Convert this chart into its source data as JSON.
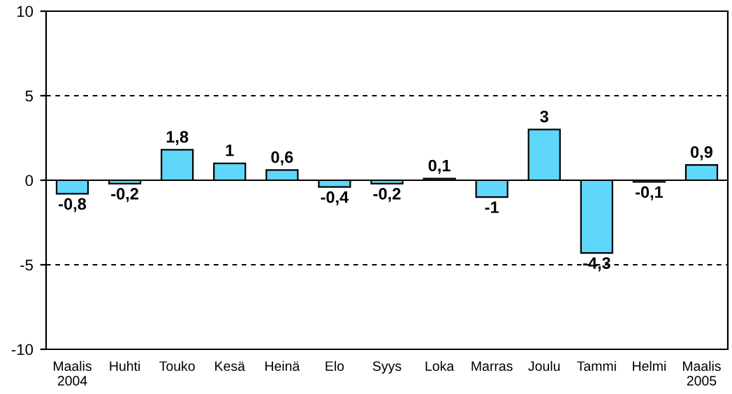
{
  "chart_data": {
    "type": "bar",
    "categories": [
      "Maalis\n2004",
      "Huhti",
      "Touko",
      "Kesä",
      "Heinä",
      "Elo",
      "Syys",
      "Loka",
      "Marras",
      "Joulu",
      "Tammi",
      "Helmi",
      "Maalis\n2005"
    ],
    "values": [
      -0.8,
      -0.2,
      1.8,
      1,
      0.6,
      -0.4,
      -0.2,
      0.1,
      -1,
      3,
      -4.3,
      -0.1,
      0.9
    ],
    "value_labels": [
      "-0,8",
      "-0,2",
      "1,8",
      "1",
      "0,6",
      "-0,4",
      "-0,2",
      "0,1",
      "-1",
      "3",
      "-4,3",
      "-0,1",
      "0,9"
    ],
    "color": "#5ed7fa",
    "ylim": [
      -10,
      10
    ],
    "yticks": [
      -10,
      -5,
      0,
      5,
      10
    ],
    "grid": "y",
    "line_style": "dashed",
    "legend": false
  }
}
